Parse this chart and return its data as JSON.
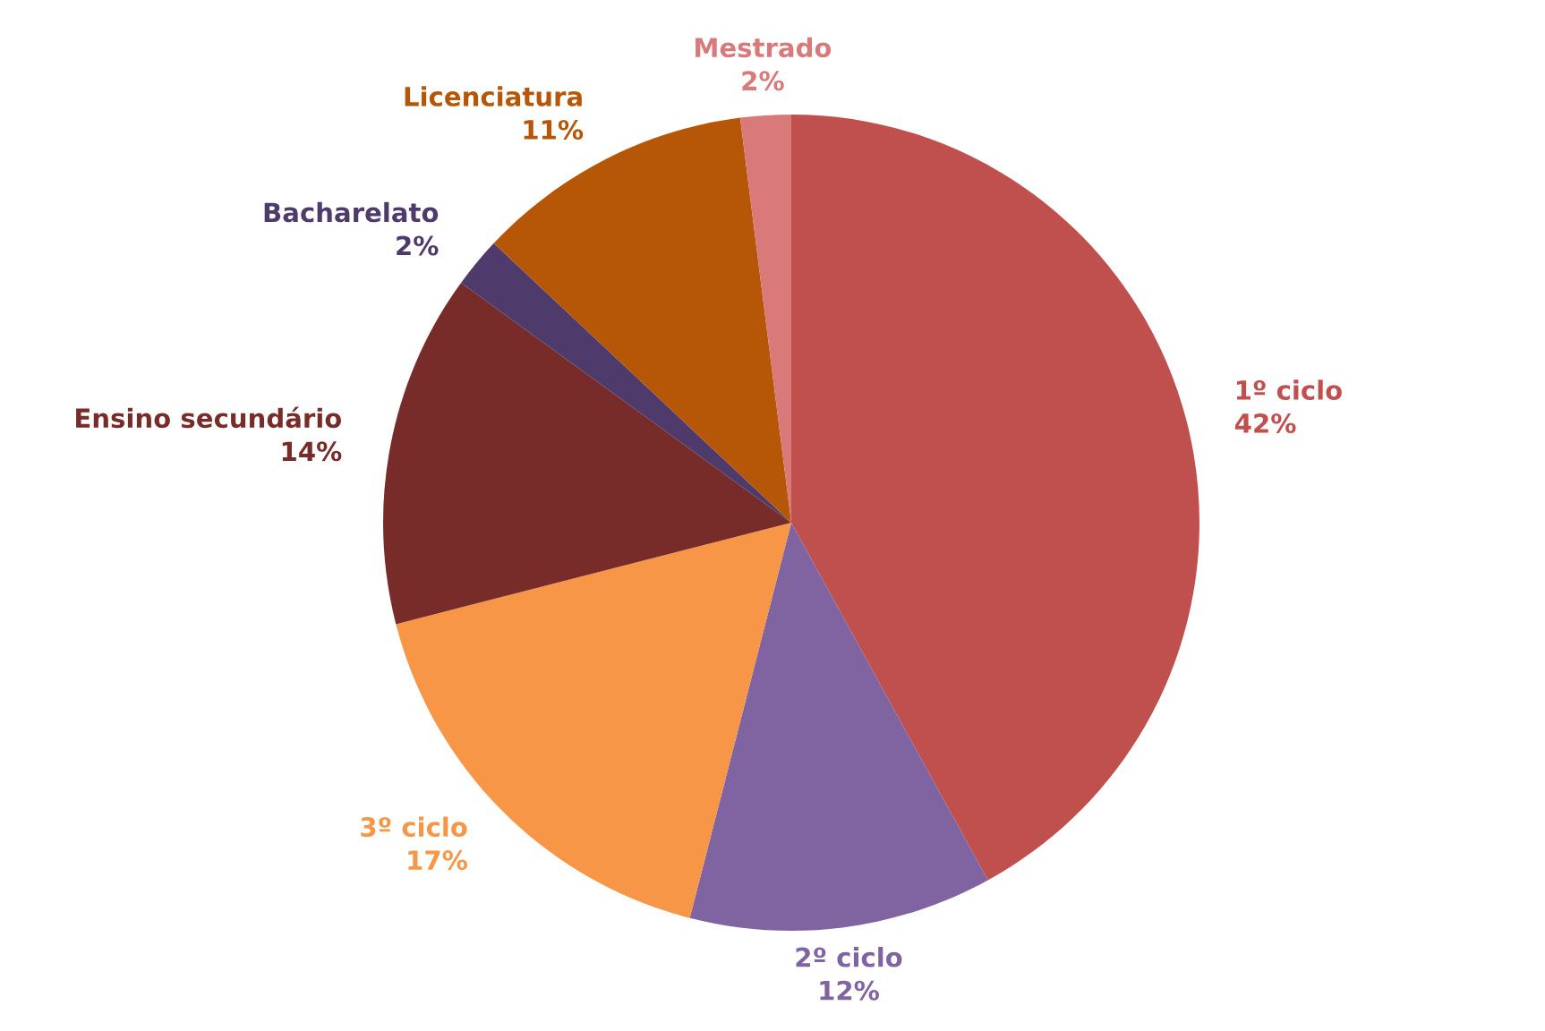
{
  "chart_data": {
    "type": "pie",
    "categories": [
      "1º ciclo",
      "2º ciclo",
      "3º ciclo",
      "Ensino secundário",
      "Bacharelato",
      "Licenciatura",
      "Mestrado"
    ],
    "values": [
      42,
      12,
      17,
      14,
      2,
      11,
      2
    ],
    "colors": [
      "#c0504d",
      "#8064a2",
      "#f79646",
      "#772c2a",
      "#4e3b6b",
      "#b65708",
      "#d9797a"
    ],
    "value_labels": [
      "42%",
      "12%",
      "17%",
      "14%",
      "2%",
      "11%",
      "2%"
    ],
    "legend": false
  }
}
